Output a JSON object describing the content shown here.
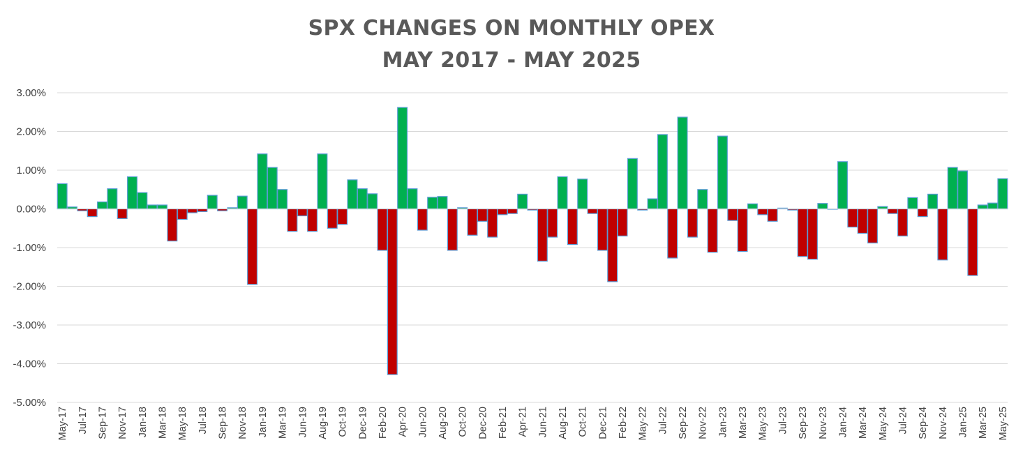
{
  "chart_data": {
    "type": "bar",
    "title": "SPX CHANGES ON MONTHLY OPEX",
    "subtitle": "MAY 2017 - MAY 2025",
    "xlabel": "",
    "ylabel": "",
    "ylim": [
      -5.0,
      3.0
    ],
    "y_ticks": [
      "3.00%",
      "2.00%",
      "1.00%",
      "0.00%",
      "-1.00%",
      "-2.00%",
      "-3.00%",
      "-4.00%",
      "-5.00%"
    ],
    "y_tick_values": [
      3,
      2,
      1,
      0,
      -1,
      -2,
      -3,
      -4,
      -5
    ],
    "y_unit": "%",
    "grid": true,
    "legend": "none",
    "colors": {
      "positive": "#00B050",
      "negative": "#C00000",
      "bar_border": "#5B9BD5",
      "grid": "#D9D9D9",
      "title": "#595959"
    },
    "categories": [
      "May-17",
      "Jun-17",
      "Jul-17",
      "Aug-17",
      "Sep-17",
      "Oct-17",
      "Nov-17",
      "Dec-17",
      "Jan-18",
      "Feb-18",
      "Mar-18",
      "Apr-18",
      "May-18",
      "Jun-18",
      "Jul-18",
      "Aug-18",
      "Sep-18",
      "Oct-18",
      "Nov-18",
      "Dec-18",
      "Jan-19",
      "Feb-19",
      "Mar-19",
      "Apr-19",
      "Jun-19",
      "Jul-19",
      "Aug-19",
      "Sep-19",
      "Oct-19",
      "Nov-19",
      "Dec-19",
      "Jan-20",
      "Feb-20",
      "Mar-20",
      "Apr-20",
      "May-20",
      "Jun-20",
      "Jul-20",
      "Aug-20",
      "Sep-20",
      "Oct-20",
      "Nov-20",
      "Dec-20",
      "Jan-21",
      "Feb-21",
      "Mar-21",
      "Apr-21",
      "May-21",
      "Jun-21",
      "Jul-21",
      "Aug-21",
      "Sep-21",
      "Oct-21",
      "Nov-21",
      "Dec-21",
      "Jan-22",
      "Feb-22",
      "Mar-22",
      "May-22",
      "Jun-22",
      "Jul-22",
      "Aug-22",
      "Sep-22",
      "Oct-22",
      "Nov-22",
      "Dec-22",
      "Jan-23",
      "Feb-23",
      "Mar-23",
      "Apr-23",
      "May-23",
      "Jun-23",
      "Jul-23",
      "Aug-23",
      "Sep-23",
      "Oct-23",
      "Nov-23",
      "Dec-23",
      "Jan-24",
      "Feb-24",
      "Mar-24",
      "Apr-24",
      "May-24",
      "Jun-24",
      "Jul-24",
      "Aug-24",
      "Sep-24",
      "Oct-24",
      "Nov-24",
      "Dec-24",
      "Jan-25",
      "Feb-25",
      "Mar-25",
      "Apr-25",
      "May-25"
    ],
    "label_every": 2,
    "values": [
      0.65,
      0.05,
      -0.05,
      -0.2,
      0.18,
      0.52,
      -0.25,
      0.83,
      0.42,
      0.1,
      0.1,
      -0.83,
      -0.27,
      -0.1,
      -0.07,
      0.35,
      -0.05,
      0.03,
      0.33,
      -1.95,
      1.42,
      1.07,
      0.5,
      -0.58,
      -0.18,
      -0.58,
      1.42,
      -0.5,
      -0.4,
      0.75,
      0.52,
      0.39,
      -1.07,
      -4.28,
      2.62,
      0.52,
      -0.55,
      0.3,
      0.32,
      -1.07,
      0.03,
      -0.68,
      -0.32,
      -0.73,
      -0.15,
      -0.12,
      0.38,
      -0.03,
      -1.35,
      -0.73,
      0.83,
      -0.92,
      0.77,
      -0.12,
      -1.07,
      -1.88,
      -0.7,
      1.3,
      -0.03,
      0.26,
      1.92,
      -1.27,
      2.37,
      -0.73,
      0.5,
      -1.12,
      1.88,
      -0.3,
      -1.1,
      0.13,
      -0.15,
      -0.32,
      0.02,
      -0.03,
      -1.23,
      -1.3,
      0.14,
      0.0,
      1.22,
      -0.47,
      -0.63,
      -0.88,
      0.06,
      -0.12,
      -0.7,
      0.29,
      -0.2,
      0.38,
      -1.32,
      1.07,
      0.98,
      -1.72,
      0.1,
      0.15,
      0.78
    ]
  }
}
